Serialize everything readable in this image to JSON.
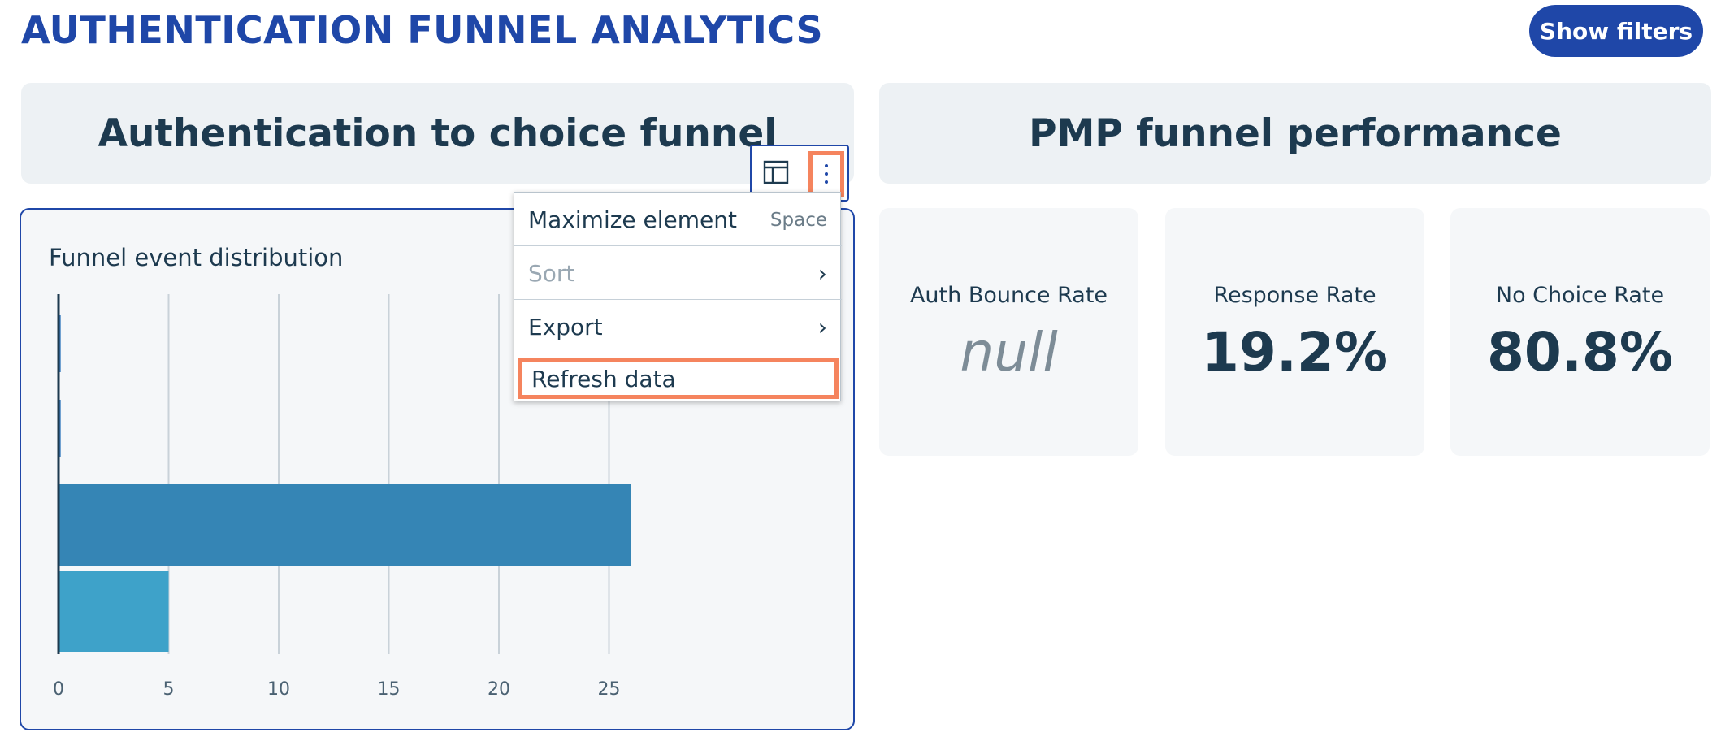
{
  "header": {
    "title": "AUTHENTICATION FUNNEL ANALYTICS",
    "show_filters_label": "Show filters"
  },
  "sections": {
    "left_title": "Authentication to choice funnel",
    "right_title": "PMP funnel performance"
  },
  "toolbar": {
    "icons": [
      "table-icon",
      "overflow-menu-icon"
    ]
  },
  "menu": {
    "items": [
      {
        "label": "Maximize element",
        "shortcut": "Space"
      },
      {
        "label": "Sort",
        "chevron": "›",
        "disabled": true
      },
      {
        "label": "Export",
        "chevron": "›"
      },
      {
        "label": "Refresh data",
        "highlighted": true
      }
    ]
  },
  "chart": {
    "title": "Funnel event distribution"
  },
  "chart_data": {
    "type": "bar",
    "orientation": "horizontal",
    "title": "Funnel event distribution",
    "x_ticks": [
      "0",
      "5",
      "10",
      "15",
      "20",
      "25"
    ],
    "xlim": [
      0,
      34
    ],
    "grid": true,
    "values": [
      0.1,
      0.1,
      26,
      5
    ],
    "colors": [
      "#3e7fc1",
      "#3e7fc1",
      "#3585b5",
      "#3ea2c9"
    ]
  },
  "kpis": [
    {
      "label": "Auth Bounce Rate",
      "value": "null"
    },
    {
      "label": "Response Rate",
      "value": "19.2%"
    },
    {
      "label": "No Choice Rate",
      "value": "80.8%"
    }
  ]
}
